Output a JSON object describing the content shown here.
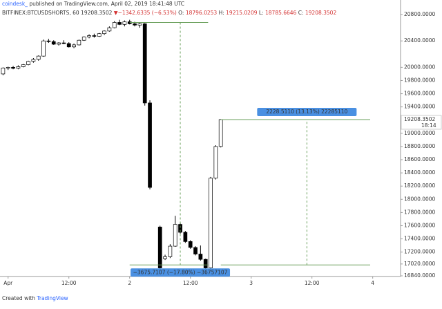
{
  "header": {
    "author": "coindesk_",
    "published": "published on TradingView.com, April 02, 2019 18:41:48 UTC",
    "symbol": "BITFINEX:BTCUSDSHORTS, 60",
    "last": "19208.3502",
    "arrow": "▼",
    "change": "−1342.6335 (−6.53%)",
    "o_label": "O:",
    "o": "18796.0253",
    "h_label": "H:",
    "h": "19215.0209",
    "l_label": "L:",
    "l": "18785.6646",
    "c_label": "C:",
    "c": "19208.3502"
  },
  "footer": {
    "created": "Created with",
    "brand": "TradingView"
  },
  "chart_data": {
    "type": "candlestick",
    "x": [
      -1,
      0,
      1,
      2,
      3,
      4,
      5,
      6,
      7,
      8,
      9,
      10,
      11,
      12,
      13,
      14,
      15,
      16,
      17,
      18,
      19,
      20,
      21,
      22,
      23,
      24,
      25,
      26,
      27,
      28,
      30,
      31,
      32,
      33,
      34,
      35,
      36,
      37,
      38,
      39,
      40,
      41,
      42
    ],
    "open": [
      19900,
      19990,
      20000,
      19985,
      20010,
      20040,
      20090,
      20120,
      20170,
      20400,
      20390,
      20350,
      20370,
      20360,
      20310,
      20340,
      20410,
      20460,
      20480,
      20470,
      20510,
      20550,
      20600,
      20680,
      20650,
      20690,
      20660,
      20640,
      20660,
      19460,
      17580,
      17100,
      17130,
      17290,
      17620,
      17500,
      17360,
      17270,
      17170,
      17090,
      16960,
      18320,
      18800
    ],
    "high": [
      20000,
      20010,
      20020,
      20030,
      20050,
      20100,
      20140,
      20180,
      20420,
      20430,
      20410,
      20380,
      20410,
      20380,
      20360,
      20420,
      20470,
      20500,
      20510,
      20520,
      20560,
      20620,
      20700,
      20720,
      20710,
      20720,
      20690,
      20680,
      20670,
      19500,
      17600,
      17160,
      17320,
      17750,
      17650,
      17520,
      17380,
      17290,
      17300,
      17100,
      18340,
      18820,
      19215
    ],
    "low": [
      19880,
      19960,
      19970,
      19970,
      20000,
      20030,
      20070,
      20100,
      20160,
      20370,
      20340,
      20330,
      20350,
      20300,
      20290,
      20330,
      20400,
      20440,
      20450,
      20460,
      20490,
      20540,
      20590,
      20640,
      20620,
      20650,
      20620,
      20600,
      19420,
      18150,
      16940,
      17080,
      17110,
      17280,
      17480,
      17340,
      17250,
      17150,
      17070,
      16940,
      16950,
      18300,
      18786
    ],
    "close": [
      19990,
      20000,
      19985,
      20010,
      20040,
      20090,
      20120,
      20170,
      20400,
      20390,
      20350,
      20370,
      20360,
      20310,
      20340,
      20410,
      20460,
      20480,
      20470,
      20510,
      20550,
      20600,
      20680,
      20650,
      20690,
      20660,
      20640,
      20660,
      19460,
      18180,
      16960,
      17130,
      17290,
      17620,
      17500,
      17360,
      17270,
      17170,
      17090,
      16960,
      18320,
      18800,
      19208
    ],
    "xlim": [
      -1.6,
      77.5
    ],
    "xticks": [
      {
        "value": 0,
        "label": "Apr"
      },
      {
        "value": 12,
        "label": "12:00"
      },
      {
        "value": 24,
        "label": "2"
      },
      {
        "value": 36,
        "label": "12:00"
      },
      {
        "value": 48,
        "label": "3"
      },
      {
        "value": 60,
        "label": "12:00"
      },
      {
        "value": 72,
        "label": "4"
      }
    ],
    "ylim": [
      16830,
      21020
    ],
    "yticks": [
      {
        "value": 20800,
        "label": "20800.0000"
      },
      {
        "value": 20400,
        "label": "20400.0000"
      },
      {
        "value": 20000,
        "label": "20000.0000"
      },
      {
        "value": 19800,
        "label": "19800.0000"
      },
      {
        "value": 19600,
        "label": "19600.0000"
      },
      {
        "value": 19400,
        "label": "19400.0000"
      },
      {
        "value": 19000,
        "label": "19000.0000"
      },
      {
        "value": 18800,
        "label": "18800.0000"
      },
      {
        "value": 18600,
        "label": "18600.0000"
      },
      {
        "value": 18400,
        "label": "18400.0000"
      },
      {
        "value": 18200,
        "label": "18200.0000"
      },
      {
        "value": 18000,
        "label": "18000.0000"
      },
      {
        "value": 17800,
        "label": "17800.0000"
      },
      {
        "value": 17600,
        "label": "17600.0000"
      },
      {
        "value": 17400,
        "label": "17400.0000"
      },
      {
        "value": 17200,
        "label": "17200.0000"
      },
      {
        "value": 17020,
        "label": "17020.0000"
      },
      {
        "value": 16840,
        "label": "16840.0000"
      }
    ],
    "last_price": 19208.3502,
    "last_time": "18:14",
    "measures": [
      {
        "from": 20680,
        "to": 17005,
        "x": 34,
        "x_range": [
          24,
          39.5
        ],
        "label": "−3675.7107 (−17.80%) −36757107"
      },
      {
        "from": 17005,
        "to": 19208,
        "x": 59,
        "x_range": [
          42,
          71.5
        ],
        "label": "2228.5110 (13.13%) 22285110"
      }
    ]
  }
}
